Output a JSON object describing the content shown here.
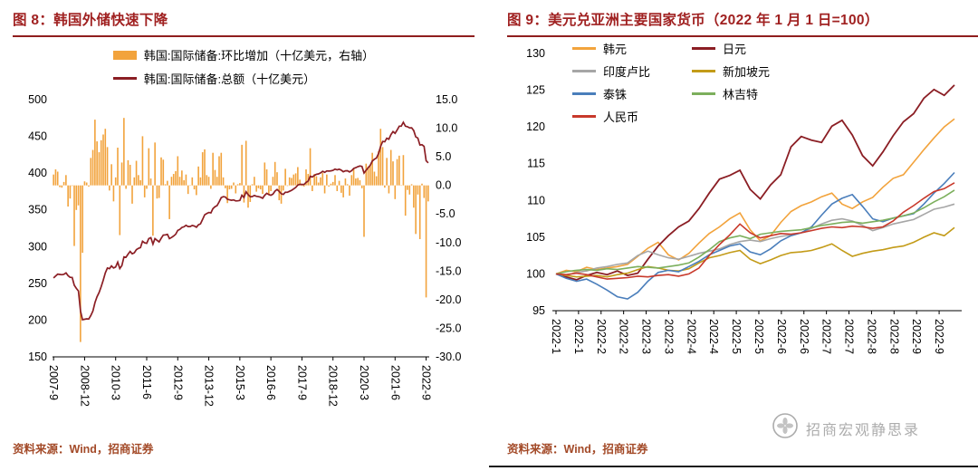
{
  "watermark": {
    "text": "招商宏观静思录"
  },
  "sources": {
    "fig8": "资料来源：Wind，招商证券",
    "fig9": "资料来源：Wind，招商证券"
  },
  "chart_data": [
    {
      "id": "fig8",
      "type": "bar+line",
      "title": "图 8：韩国外储快速下降",
      "legend": [
        {
          "label": "韩国:国际储备:环比增加（十亿美元，右轴）",
          "style": "bar",
          "color": "#F2A33C"
        },
        {
          "label": "韩国:国际储备:总额（十亿美元）",
          "style": "line",
          "color": "#8B1E24"
        }
      ],
      "x_unit": "month",
      "x_start": "2007-9",
      "x_end": "2022-10",
      "x_tick_step_months": 15,
      "x_tick_labels": [
        "2007-9",
        "2008-12",
        "2010-3",
        "2011-6",
        "2012-9",
        "2013-12",
        "2015-3",
        "2016-6",
        "2017-9",
        "2018-12",
        "2020-3",
        "2021-6",
        "2022-9"
      ],
      "left_axis": {
        "min": 150,
        "max": 500,
        "step": 50
      },
      "right_axis": {
        "min": -30,
        "max": 15,
        "step": 5
      },
      "bars_note": "bars = month-over-month change of total reserves, plotted on right axis",
      "value_before_first_month": 255.4,
      "total_reserves_billion_usd": [
        257.3,
        260.1,
        262.5,
        262.2,
        261.8,
        262.4,
        264.2,
        260.5,
        258.2,
        258.1,
        247.5,
        243.2,
        239.7,
        212.3,
        200.5,
        201.2,
        201.7,
        201.5,
        206.3,
        212.5,
        224.0,
        231.7,
        237.5,
        245.4,
        254.3,
        264.2,
        270.9,
        270.0,
        273.7,
        270.9,
        272.3,
        278.9,
        270.2,
        274.2,
        286.0,
        285.4,
        289.8,
        293.4,
        290.2,
        291.6,
        295.9,
        297.7,
        298.6,
        307.2,
        305.1,
        304.5,
        311.0,
        312.2,
        303.4,
        310.9,
        308.6,
        306.4,
        311.3,
        315.8,
        316.0,
        316.8,
        310.9,
        312.4,
        314.4,
        316.9,
        322.0,
        323.5,
        326.1,
        327.0,
        328.9,
        327.4,
        327.4,
        328.8,
        328.1,
        326.4,
        329.7,
        331.1,
        336.9,
        343.2,
        345.0,
        346.5,
        345.9,
        351.6,
        354.3,
        355.8,
        360.9,
        366.6,
        368.0,
        367.5,
        364.4,
        363.7,
        363.1,
        363.6,
        362.2,
        362.4,
        362.8,
        369.9,
        366.9,
        374.7,
        370.8,
        367.9,
        368.1,
        369.6,
        368.5,
        368.0,
        367.3,
        365.8,
        369.8,
        372.6,
        370.9,
        369.9,
        371.4,
        375.5,
        377.8,
        375.2,
        372.0,
        371.1,
        374.0,
        373.9,
        375.3,
        376.6,
        378.5,
        380.6,
        383.8,
        384.8,
        384.7,
        384.5,
        387.3,
        389.3,
        395.8,
        394.8,
        396.8,
        398.4,
        398.9,
        400.3,
        402.5,
        401.1,
        403.0,
        402.8,
        403.1,
        403.7,
        405.5,
        404.5,
        405.3,
        404.0,
        401.9,
        403.1,
        403.3,
        401.5,
        403.3,
        406.3,
        407.5,
        408.8,
        409.7,
        409.2,
        400.2,
        404.0,
        407.3,
        410.8,
        416.5,
        418.9,
        420.5,
        426.5,
        436.4,
        443.1,
        442.7,
        447.5,
        446.1,
        452.3,
        456.5,
        454.1,
        458.7,
        463.9,
        463.9,
        469.2,
        463.9,
        463.1,
        461.5,
        461.7,
        457.8,
        449.3,
        447.7,
        438.3,
        438.6,
        436.4,
        416.8,
        414.0
      ]
    },
    {
      "id": "fig9",
      "type": "line",
      "title": "图 9：美元兑亚洲主要国家货币（2022 年 1 月 1 日=100）",
      "index_base": "2022-01-01=100",
      "y_axis": {
        "min": 95,
        "max": 130,
        "step": 5
      },
      "x_points_note": "weekly values, 2022-01-01 to 2022-10-01 (40 points)",
      "x_tick_labels": [
        "2022-1",
        "2022-1",
        "2022-2",
        "2022-2",
        "2022-3",
        "2022-3",
        "2022-4",
        "2022-4",
        "2022-5",
        "2022-5",
        "2022-6",
        "2022-6",
        "2022-7",
        "2022-7",
        "2022-8",
        "2022-8",
        "2022-9",
        "2022-9"
      ],
      "series": [
        {
          "name": "韩元",
          "color": "#F2A33C",
          "values": [
            100.0,
            100.5,
            100.3,
            100.9,
            100.6,
            100.8,
            101.0,
            101.3,
            102.4,
            103.5,
            104.3,
            102.6,
            101.9,
            102.8,
            104.2,
            105.5,
            106.4,
            107.5,
            108.3,
            106.0,
            104.5,
            105.2,
            107.0,
            108.5,
            109.3,
            109.8,
            110.5,
            111.0,
            109.5,
            108.9,
            109.8,
            110.4,
            111.8,
            113.0,
            113.5,
            115.2,
            116.9,
            118.5,
            120.0,
            121.1
          ]
        },
        {
          "name": "日元",
          "color": "#8B1E24",
          "values": [
            100.0,
            99.6,
            99.2,
            99.8,
            100.2,
            99.9,
            100.4,
            99.8,
            100.1,
            102.0,
            103.8,
            105.2,
            106.4,
            107.2,
            108.9,
            111.0,
            112.9,
            113.4,
            114.1,
            111.5,
            110.2,
            112.1,
            113.5,
            117.3,
            118.7,
            118.2,
            117.9,
            120.1,
            120.9,
            118.9,
            116.1,
            114.7,
            116.6,
            118.8,
            120.7,
            121.8,
            123.9,
            125.1,
            124.3,
            125.7
          ]
        },
        {
          "name": "印度卢比",
          "color": "#A6A6A6",
          "values": [
            100.0,
            99.8,
            100.2,
            100.4,
            100.8,
            101.0,
            101.3,
            101.5,
            102.5,
            103.1,
            102.6,
            102.2,
            102.0,
            102.4,
            102.8,
            103.1,
            103.4,
            104.0,
            104.4,
            104.6,
            104.4,
            104.8,
            105.1,
            105.3,
            105.6,
            106.2,
            106.8,
            107.3,
            107.5,
            107.2,
            106.6,
            105.9,
            106.3,
            106.8,
            107.1,
            107.4,
            108.1,
            108.8,
            109.1,
            109.5
          ]
        },
        {
          "name": "新加坡元",
          "color": "#C39B18",
          "values": [
            100.0,
            99.8,
            99.6,
            99.7,
            99.8,
            99.6,
            99.9,
            100.1,
            100.6,
            101.0,
            100.8,
            100.5,
            100.4,
            100.7,
            101.5,
            102.2,
            102.5,
            102.9,
            103.2,
            102.0,
            101.4,
            101.9,
            102.5,
            102.9,
            103.0,
            103.2,
            103.6,
            104.1,
            103.2,
            102.4,
            102.8,
            103.1,
            103.3,
            103.6,
            103.8,
            104.3,
            105.0,
            105.6,
            105.2,
            106.3
          ]
        },
        {
          "name": "泰铢",
          "color": "#4A7EBB",
          "values": [
            100.0,
            99.4,
            99.0,
            99.3,
            98.6,
            97.8,
            96.9,
            96.6,
            97.5,
            99.0,
            100.2,
            100.5,
            100.3,
            101.0,
            101.7,
            102.6,
            103.2,
            103.8,
            104.1,
            103.0,
            102.6,
            103.4,
            104.5,
            105.2,
            105.6,
            106.4,
            108.0,
            109.5,
            110.3,
            110.8,
            109.2,
            107.5,
            107.1,
            107.6,
            107.9,
            108.2,
            109.5,
            111.0,
            112.3,
            113.8
          ]
        },
        {
          "name": "林吉特",
          "color": "#7CAF5C",
          "values": [
            100.0,
            100.3,
            100.5,
            100.6,
            100.5,
            100.7,
            100.6,
            100.8,
            101.0,
            100.9,
            100.8,
            101.0,
            101.2,
            101.5,
            102.3,
            103.3,
            104.4,
            104.9,
            105.2,
            104.8,
            105.4,
            105.6,
            105.8,
            105.9,
            106.0,
            106.3,
            106.6,
            106.8,
            107.0,
            107.1,
            106.9,
            107.1,
            107.3,
            107.6,
            107.9,
            108.3,
            109.0,
            109.8,
            110.5,
            111.4
          ]
        },
        {
          "name": "人民币",
          "color": "#C8392B",
          "values": [
            100.0,
            99.9,
            100.1,
            99.9,
            99.6,
            99.3,
            99.4,
            99.5,
            99.7,
            99.6,
            99.8,
            99.9,
            99.7,
            100.0,
            100.8,
            102.5,
            104.0,
            105.3,
            106.8,
            105.6,
            104.9,
            105.2,
            105.5,
            105.4,
            105.6,
            105.9,
            106.2,
            106.4,
            106.3,
            106.5,
            106.4,
            106.2,
            106.4,
            107.2,
            108.4,
            109.3,
            110.3,
            111.2,
            111.6,
            112.4
          ]
        }
      ]
    }
  ]
}
